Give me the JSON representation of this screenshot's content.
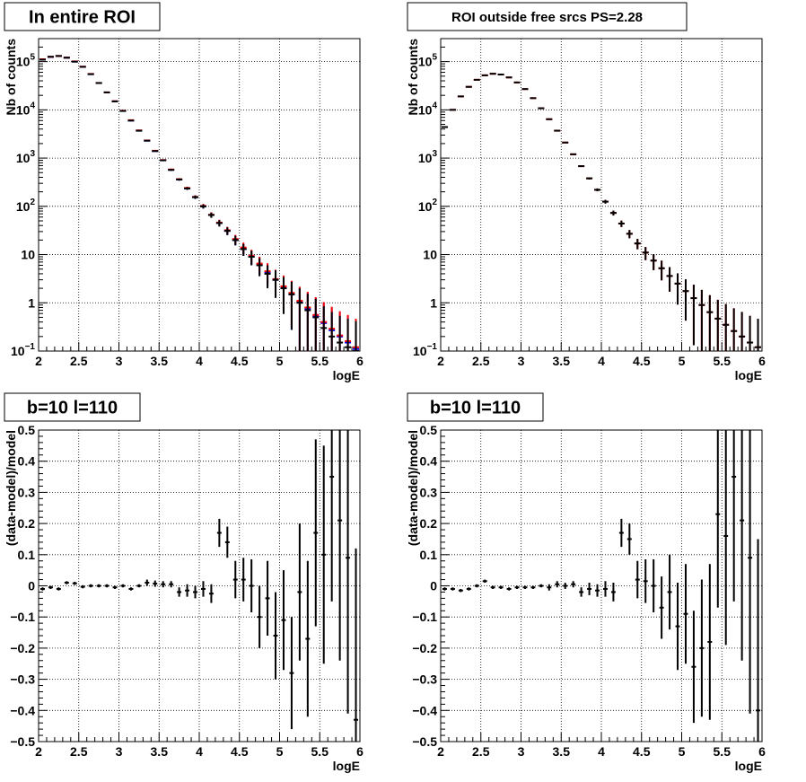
{
  "page": {
    "background": "#ffffff"
  },
  "colors": {
    "data": "#000000",
    "model": "#ff0000",
    "model_alt": "#0000ff",
    "component": "#00cc00",
    "grid": "#000000"
  },
  "chart_data": [
    {
      "type": "scatter",
      "title": "In entire ROI",
      "xlabel": "logE",
      "ylabel": "Nb of counts",
      "xlim": [
        2,
        6
      ],
      "ylim": [
        0.1,
        300000
      ],
      "yscale": "log",
      "grid": true,
      "xticks": [
        "2",
        "2.5",
        "3",
        "3.5",
        "4",
        "4.5",
        "5",
        "5.5",
        "6"
      ],
      "yticks": [
        {
          "v": 0.1,
          "base": "10",
          "exp": "−1"
        },
        {
          "v": 1,
          "label": "1"
        },
        {
          "v": 10,
          "label": "10"
        },
        {
          "v": 100,
          "base": "10",
          "exp": "2"
        },
        {
          "v": 1000,
          "base": "10",
          "exp": "3"
        },
        {
          "v": 10000,
          "base": "10",
          "exp": "4"
        },
        {
          "v": 100000,
          "base": "10",
          "exp": "5"
        }
      ],
      "bin_width": 0.1,
      "series": [
        {
          "kind": "model_blue",
          "x": [
            2.05,
            2.15,
            2.25,
            2.35,
            2.45,
            2.55,
            2.65,
            2.75,
            2.85,
            2.95,
            3.05,
            3.15,
            3.25,
            3.35,
            3.45,
            3.55,
            3.65,
            3.75,
            3.85,
            3.95,
            4.05,
            4.15,
            4.25,
            4.35,
            4.45,
            4.55,
            4.65,
            4.75,
            4.85,
            4.95,
            5.05,
            5.15,
            5.25,
            5.35,
            5.45,
            5.55,
            5.65,
            5.75,
            5.85,
            5.95
          ],
          "y": [
            110000,
            125000,
            130000,
            120000,
            100000,
            78000,
            55000,
            36000,
            23000,
            15000,
            9500,
            6000,
            3700,
            2300,
            1400,
            900,
            570,
            360,
            235,
            155,
            100,
            66,
            45,
            31,
            20,
            13,
            9,
            6.2,
            4.3,
            3.0,
            2.1,
            1.5,
            1.05,
            0.75,
            0.53,
            0.38,
            0.27,
            0.2,
            0.15,
            0.11
          ]
        },
        {
          "kind": "model",
          "x": [
            2.05,
            2.15,
            2.25,
            2.35,
            2.45,
            2.55,
            2.65,
            2.75,
            2.85,
            2.95,
            3.05,
            3.15,
            3.25,
            3.35,
            3.45,
            3.55,
            3.65,
            3.75,
            3.85,
            3.95,
            4.05,
            4.15,
            4.25,
            4.35,
            4.45,
            4.55,
            4.65,
            4.75,
            4.85,
            4.95,
            5.05,
            5.15,
            5.25,
            5.35,
            5.45,
            5.55,
            5.65,
            5.75,
            5.85,
            5.95
          ],
          "y": [
            112000,
            126000,
            131000,
            121000,
            101000,
            78500,
            55500,
            36000,
            23000,
            15100,
            9600,
            6100,
            3750,
            2320,
            1420,
            910,
            580,
            365,
            240,
            157,
            102,
            67,
            46,
            32,
            21,
            14,
            9.5,
            6.5,
            4.5,
            3.1,
            2.2,
            1.6,
            1.1,
            0.8,
            0.56,
            0.4,
            0.29,
            0.21,
            0.16,
            0.12
          ]
        },
        {
          "kind": "data",
          "x": [
            2.05,
            2.15,
            2.25,
            2.35,
            2.45,
            2.55,
            2.65,
            2.75,
            2.85,
            2.95,
            3.05,
            3.15,
            3.25,
            3.35,
            3.45,
            3.55,
            3.65,
            3.75,
            3.85,
            3.95,
            4.05,
            4.15,
            4.25,
            4.35,
            4.45,
            4.55,
            4.65,
            4.75,
            4.85,
            4.95,
            5.05,
            5.15,
            5.25,
            5.35,
            5.45,
            5.55,
            5.65,
            5.75,
            5.85,
            5.95
          ],
          "y": [
            110000,
            126000,
            131000,
            121000,
            100000,
            78000,
            55000,
            36000,
            23000,
            15000,
            9500,
            6000,
            3700,
            2300,
            1400,
            900,
            570,
            360,
            235,
            155,
            100,
            66,
            45,
            31,
            20,
            13,
            9,
            6,
            4,
            3,
            2,
            1.5,
            1,
            0.7,
            0.5,
            0.3,
            0.2,
            0.15,
            0.12,
            0.1
          ]
        }
      ]
    },
    {
      "type": "scatter",
      "title": "ROI outside free srcs PS=2.28",
      "xlabel": "logE",
      "ylabel": "Nb of counts",
      "xlim": [
        2,
        6
      ],
      "ylim": [
        0.1,
        300000
      ],
      "yscale": "log",
      "grid": true,
      "xticks": [
        "2",
        "2.5",
        "3",
        "3.5",
        "4",
        "4.5",
        "5",
        "5.5",
        "6"
      ],
      "yticks": [
        {
          "v": 0.1,
          "base": "10",
          "exp": "−1"
        },
        {
          "v": 1,
          "label": "1"
        },
        {
          "v": 10,
          "label": "10"
        },
        {
          "v": 100,
          "base": "10",
          "exp": "2"
        },
        {
          "v": 1000,
          "base": "10",
          "exp": "3"
        },
        {
          "v": 10000,
          "base": "10",
          "exp": "4"
        },
        {
          "v": 100000,
          "base": "10",
          "exp": "5"
        }
      ],
      "bin_width": 0.1,
      "series": [
        {
          "kind": "model",
          "x": [
            2.05,
            2.15,
            2.25,
            2.35,
            2.45,
            2.55,
            2.65,
            2.75,
            2.85,
            2.95,
            3.05,
            3.15,
            3.25,
            3.35,
            3.45,
            3.55,
            3.65,
            3.75,
            3.85,
            3.95,
            4.05,
            4.15,
            4.25,
            4.35,
            4.45,
            4.55,
            4.65,
            4.75,
            4.85,
            4.95,
            5.05,
            5.15,
            5.25,
            5.35,
            5.45,
            5.55,
            5.65,
            5.75,
            5.85,
            5.95
          ],
          "y": [
            4400,
            10000,
            19000,
            30000,
            42000,
            52000,
            56000,
            54000,
            47000,
            37000,
            27000,
            17500,
            10800,
            6400,
            3700,
            2100,
            1200,
            680,
            380,
            220,
            125,
            73,
            44,
            27,
            17,
            11,
            7.5,
            5.2,
            3.6,
            2.5,
            1.75,
            1.25,
            0.9,
            0.64,
            0.47,
            0.35,
            0.26,
            0.2,
            0.15,
            0.12
          ]
        },
        {
          "kind": "data",
          "x": [
            2.05,
            2.15,
            2.25,
            2.35,
            2.45,
            2.55,
            2.65,
            2.75,
            2.85,
            2.95,
            3.05,
            3.15,
            3.25,
            3.35,
            3.45,
            3.55,
            3.65,
            3.75,
            3.85,
            3.95,
            4.05,
            4.15,
            4.25,
            4.35,
            4.45,
            4.55,
            4.65,
            4.75,
            4.85,
            4.95,
            5.05,
            5.15,
            5.25,
            5.35,
            5.45,
            5.55,
            5.65,
            5.75,
            5.85,
            5.95
          ],
          "y": [
            4400,
            10000,
            19000,
            30000,
            42000,
            52000,
            56000,
            54000,
            47000,
            37000,
            27000,
            17500,
            10800,
            6400,
            3700,
            2100,
            1200,
            680,
            380,
            220,
            125,
            73,
            44,
            27,
            17,
            11,
            7.5,
            5.2,
            3.6,
            2.5,
            1.75,
            1.25,
            0.9,
            0.64,
            0.47,
            0.35,
            0.26,
            0.2,
            0.15,
            0.12
          ]
        }
      ]
    },
    {
      "type": "scatter",
      "title": "b=10 l=110",
      "xlabel": "logE",
      "ylabel": "(data-model)/model",
      "xlim": [
        2,
        6
      ],
      "ylim": [
        -0.5,
        0.5
      ],
      "yscale": "linear",
      "grid": true,
      "xticks": [
        "2",
        "2.5",
        "3",
        "3.5",
        "4",
        "4.5",
        "5",
        "5.5",
        "6"
      ],
      "yticks": [
        {
          "v": -0.5,
          "label": "−0.5"
        },
        {
          "v": -0.4,
          "label": "−0.4"
        },
        {
          "v": -0.3,
          "label": "−0.3"
        },
        {
          "v": -0.2,
          "label": "−0.2"
        },
        {
          "v": -0.1,
          "label": "−0.1"
        },
        {
          "v": 0,
          "label": "0"
        },
        {
          "v": 0.1,
          "label": "0.1"
        },
        {
          "v": 0.2,
          "label": "0.2"
        },
        {
          "v": 0.3,
          "label": "0.3"
        },
        {
          "v": 0.4,
          "label": "0.4"
        },
        {
          "v": 0.5,
          "label": "0.5"
        }
      ],
      "bin_width": 0.1,
      "series": [
        {
          "kind": "residual",
          "x": [
            2.05,
            2.15,
            2.25,
            2.35,
            2.45,
            2.55,
            2.65,
            2.75,
            2.85,
            2.95,
            3.05,
            3.15,
            3.25,
            3.35,
            3.45,
            3.55,
            3.65,
            3.75,
            3.85,
            3.95,
            4.05,
            4.15,
            4.25,
            4.35,
            4.45,
            4.55,
            4.65,
            4.75,
            4.85,
            4.95,
            5.05,
            5.15,
            5.25,
            5.35,
            5.45,
            5.55,
            5.65,
            5.75,
            5.85,
            5.95
          ],
          "y": [
            -0.01,
            -0.005,
            -0.01,
            0.01,
            0.008,
            -0.003,
            0.0,
            0.0,
            0.0,
            -0.005,
            0.0,
            -0.01,
            0.0,
            0.01,
            0.007,
            0.005,
            0.005,
            -0.02,
            -0.015,
            -0.02,
            -0.01,
            -0.025,
            0.17,
            0.14,
            0.02,
            0.02,
            0.0,
            -0.1,
            -0.04,
            -0.16,
            -0.11,
            -0.28,
            -0.02,
            -0.17,
            0.17,
            0.1,
            0.35,
            0.21,
            0.09,
            -0.43
          ],
          "err": [
            0.005,
            0.005,
            0.005,
            0.005,
            0.005,
            0.005,
            0.005,
            0.005,
            0.005,
            0.005,
            0.005,
            0.005,
            0.005,
            0.01,
            0.01,
            0.01,
            0.01,
            0.015,
            0.02,
            0.02,
            0.025,
            0.03,
            0.045,
            0.05,
            0.06,
            0.07,
            0.085,
            0.1,
            0.12,
            0.14,
            0.16,
            0.18,
            0.22,
            0.25,
            0.3,
            0.35,
            0.4,
            0.45,
            0.5,
            0.55
          ]
        }
      ]
    },
    {
      "type": "scatter",
      "title": "b=10 l=110",
      "xlabel": "logE",
      "ylabel": "(data-model)/model",
      "xlim": [
        2,
        6
      ],
      "ylim": [
        -0.5,
        0.5
      ],
      "yscale": "linear",
      "grid": true,
      "xticks": [
        "2",
        "2.5",
        "3",
        "3.5",
        "4",
        "4.5",
        "5",
        "5.5",
        "6"
      ],
      "yticks": [
        {
          "v": -0.5,
          "label": "−0.5"
        },
        {
          "v": -0.4,
          "label": "−0.4"
        },
        {
          "v": -0.3,
          "label": "−0.3"
        },
        {
          "v": -0.2,
          "label": "−0.2"
        },
        {
          "v": -0.1,
          "label": "−0.1"
        },
        {
          "v": 0,
          "label": "0"
        },
        {
          "v": 0.1,
          "label": "0.1"
        },
        {
          "v": 0.2,
          "label": "0.2"
        },
        {
          "v": 0.3,
          "label": "0.3"
        },
        {
          "v": 0.4,
          "label": "0.4"
        },
        {
          "v": 0.5,
          "label": "0.5"
        }
      ],
      "bin_width": 0.1,
      "series": [
        {
          "kind": "residual",
          "x": [
            2.05,
            2.15,
            2.25,
            2.35,
            2.45,
            2.55,
            2.65,
            2.75,
            2.85,
            2.95,
            3.05,
            3.15,
            3.25,
            3.35,
            3.45,
            3.55,
            3.65,
            3.75,
            3.85,
            3.95,
            4.05,
            4.15,
            4.25,
            4.35,
            4.45,
            4.55,
            4.65,
            4.75,
            4.85,
            4.95,
            5.05,
            5.15,
            5.25,
            5.35,
            5.45,
            5.55,
            5.65,
            5.75,
            5.85,
            5.95
          ],
          "y": [
            -0.01,
            -0.01,
            -0.015,
            -0.01,
            0.0,
            0.015,
            -0.005,
            -0.005,
            -0.01,
            -0.005,
            -0.005,
            -0.005,
            0.0,
            -0.005,
            0.005,
            0.0,
            0.005,
            -0.02,
            -0.01,
            -0.015,
            -0.01,
            -0.02,
            0.17,
            0.15,
            0.02,
            0.015,
            0.0,
            -0.07,
            -0.02,
            -0.13,
            -0.09,
            -0.26,
            -0.2,
            -0.18,
            0.23,
            0.16,
            0.35,
            0.21,
            0.09,
            -0.4
          ],
          "err": [
            0.005,
            0.005,
            0.005,
            0.005,
            0.005,
            0.005,
            0.005,
            0.005,
            0.005,
            0.005,
            0.005,
            0.005,
            0.005,
            0.01,
            0.01,
            0.01,
            0.01,
            0.015,
            0.02,
            0.02,
            0.025,
            0.03,
            0.045,
            0.05,
            0.06,
            0.07,
            0.085,
            0.1,
            0.12,
            0.14,
            0.16,
            0.18,
            0.22,
            0.25,
            0.3,
            0.35,
            0.4,
            0.45,
            0.5,
            0.55
          ]
        }
      ]
    }
  ]
}
